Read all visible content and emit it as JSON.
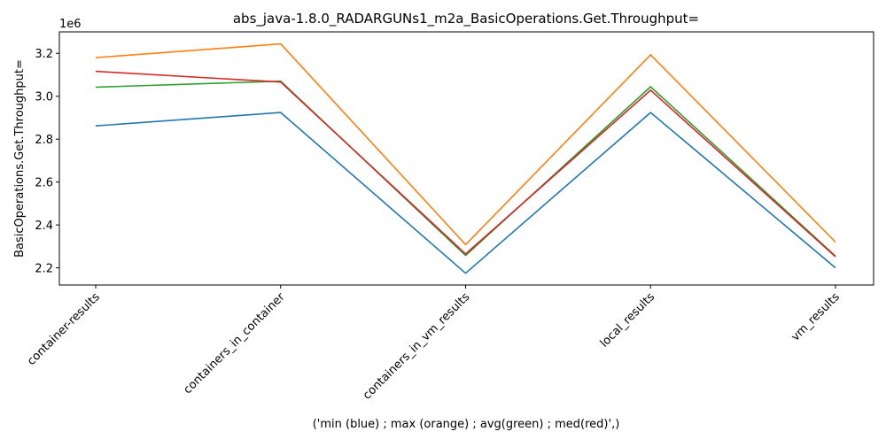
{
  "chart_data": {
    "type": "line",
    "title": "abs_java-1.8.0_RADARGUNs1_m2a_BasicOperations.Get.Throughput=",
    "xlabel": "('min (blue) ; max (orange) ; avg(green) ; med(red)',)",
    "ylabel": "BasicOperations.Get.Throughput=",
    "offset_label": "1e6",
    "categories": [
      "container-results",
      "containers_in_container",
      "containers_in_vm_results",
      "local_results",
      "vm_results"
    ],
    "ylim": [
      2.12,
      3.3
    ],
    "yticks": [
      2.2,
      2.4,
      2.6,
      2.8,
      3.0,
      3.2
    ],
    "ytick_labels": [
      "2.2",
      "2.4",
      "2.6",
      "2.8",
      "3.0",
      "3.2"
    ],
    "grid": false,
    "series": [
      {
        "color": "#1f77b4",
        "values": [
          2.862,
          2.924,
          2.175,
          2.924,
          2.2
        ]
      },
      {
        "color": "#ff7f0e",
        "values": [
          3.18,
          3.244,
          2.308,
          3.193,
          2.32
        ]
      },
      {
        "color": "#2ca02c",
        "values": [
          3.042,
          3.07,
          2.258,
          3.044,
          2.255
        ]
      },
      {
        "color": "#d62728",
        "values": [
          3.116,
          3.066,
          2.265,
          3.028,
          2.252
        ]
      }
    ]
  }
}
